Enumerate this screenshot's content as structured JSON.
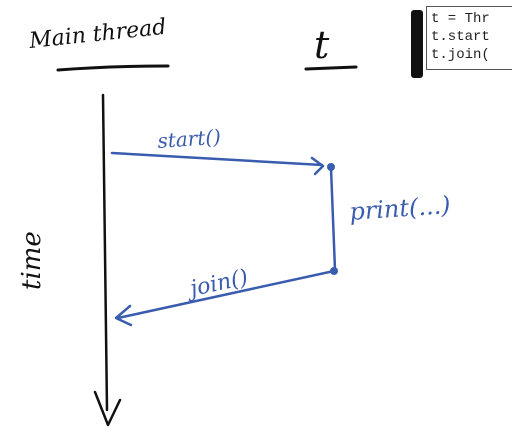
{
  "labels": {
    "main_thread": "Main thread",
    "t_label": "t",
    "time": "time",
    "start": "start()",
    "print": "print(...)",
    "join": "join()"
  },
  "code": {
    "lines": [
      "t = Thr",
      "t.start",
      "t.join("
    ]
  },
  "colors": {
    "ink": "#111111",
    "pen_blue": "#3a5cae"
  }
}
